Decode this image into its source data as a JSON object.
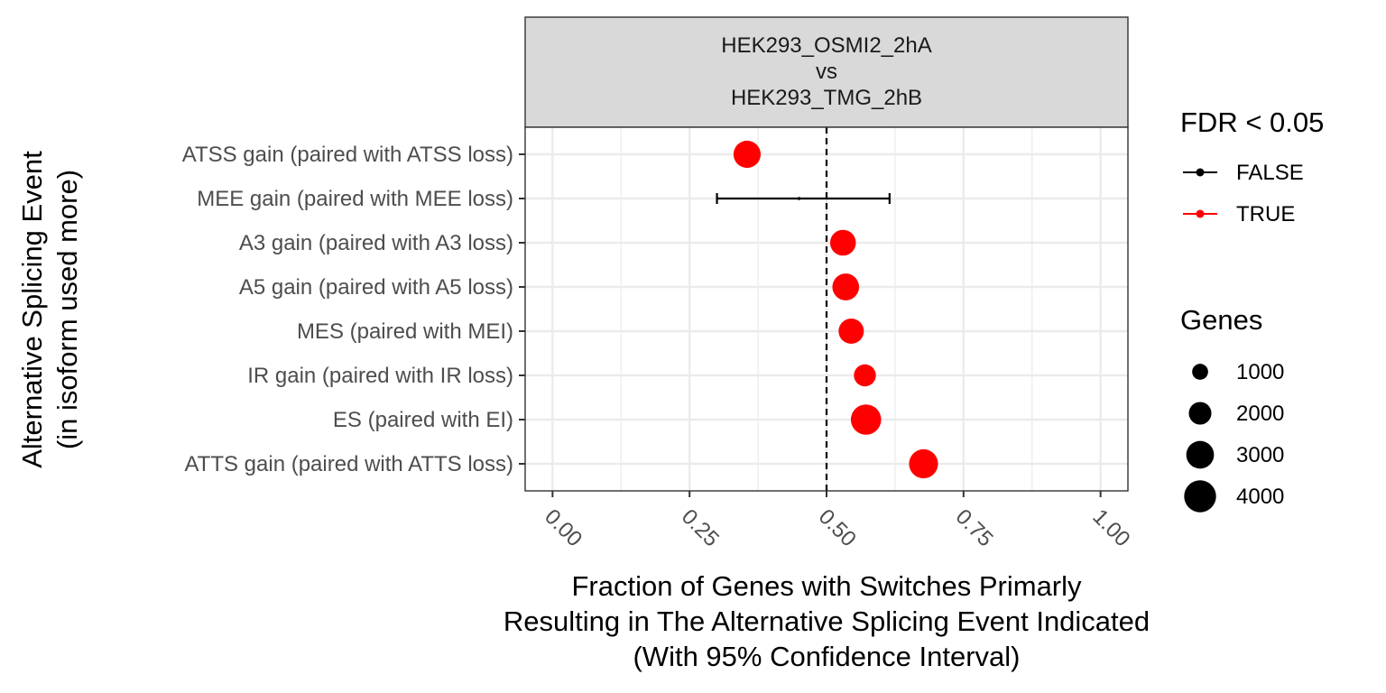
{
  "chart_data": {
    "type": "scatter",
    "facet_title": [
      "HEK293_OSMI2_2hA",
      "vs",
      "HEK293_TMG_2hB"
    ],
    "xlabel": [
      "Fraction of Genes with Switches Primarly",
      "Resulting in The Alternative Splicing Event Indicated",
      "(With 95% Confidence Interval)"
    ],
    "ylabel": [
      "Alternative Splicing Event",
      "(in isoform used more)"
    ],
    "xlim": [
      -0.05,
      1.05
    ],
    "x_ticks": [
      0,
      0.25,
      0.5,
      0.75,
      1.0
    ],
    "x_tick_labels": [
      "0.00",
      "0.25",
      "0.50",
      "0.75",
      "1.00"
    ],
    "reference_line": 0.5,
    "grid": true,
    "categories": [
      "ATSS gain (paired with ATSS loss)",
      "MEE gain (paired with MEE loss)",
      "A3 gain (paired with A3 loss)",
      "A5 gain (paired with A5 loss)",
      "MES (paired with MEI)",
      "IR gain (paired with IR loss)",
      "ES (paired with EI)",
      "ATTS gain (paired with ATTS loss)"
    ],
    "points": [
      {
        "category": "ATSS gain (paired with ATSS loss)",
        "fraction": 0.355,
        "ci_low": null,
        "ci_high": null,
        "fdr_significant": "TRUE",
        "genes": 2900
      },
      {
        "category": "MEE gain (paired with MEE loss)",
        "fraction": 0.45,
        "ci_low": 0.3,
        "ci_high": 0.615,
        "fdr_significant": "FALSE",
        "genes": 40
      },
      {
        "category": "A3 gain (paired with A3 loss)",
        "fraction": 0.53,
        "ci_low": null,
        "ci_high": null,
        "fdr_significant": "TRUE",
        "genes": 2600
      },
      {
        "category": "A5 gain (paired with A5 loss)",
        "fraction": 0.535,
        "ci_low": null,
        "ci_high": null,
        "fdr_significant": "TRUE",
        "genes": 2800
      },
      {
        "category": "MES (paired with MEI)",
        "fraction": 0.545,
        "ci_low": null,
        "ci_high": null,
        "fdr_significant": "TRUE",
        "genes": 2500
      },
      {
        "category": "IR gain (paired with IR loss)",
        "fraction": 0.57,
        "ci_low": null,
        "ci_high": null,
        "fdr_significant": "TRUE",
        "genes": 1900
      },
      {
        "category": "ES (paired with EI)",
        "fraction": 0.572,
        "ci_low": null,
        "ci_high": null,
        "fdr_significant": "TRUE",
        "genes": 3600
      },
      {
        "category": "ATTS gain (paired with ATTS loss)",
        "fraction": 0.677,
        "ci_low": null,
        "ci_high": null,
        "fdr_significant": "TRUE",
        "genes": 3300
      }
    ],
    "legend_fdr": {
      "title": "FDR < 0.05",
      "entries": [
        {
          "label": "FALSE",
          "color": "#000000"
        },
        {
          "label": "TRUE",
          "color": "#ff0000"
        }
      ]
    },
    "legend_genes": {
      "title": "Genes",
      "entries": [
        {
          "label": "1000",
          "value": 1000
        },
        {
          "label": "2000",
          "value": 2000
        },
        {
          "label": "3000",
          "value": 3000
        },
        {
          "label": "4000",
          "value": 4000
        }
      ]
    },
    "colors": {
      "significant": "#ff0000",
      "not_significant": "#000000",
      "strip_fill": "#d9d9d9",
      "grid": "#ebebeb",
      "axis_text": "#4d4d4d"
    },
    "legend_position": "right"
  }
}
